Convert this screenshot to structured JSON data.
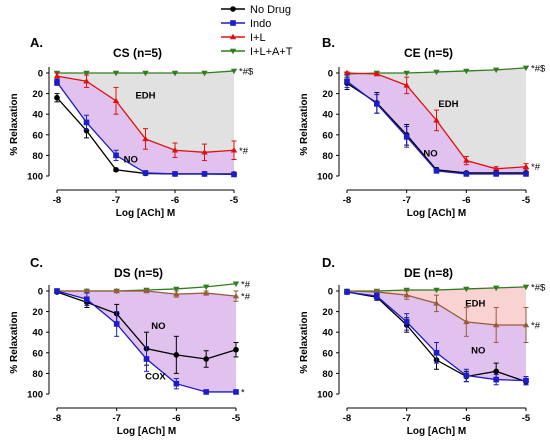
{
  "legend": {
    "items": [
      {
        "label": "No Drug",
        "color": "#000000",
        "marker": "circle"
      },
      {
        "label": "Indo",
        "color": "#1c1cc8",
        "marker": "square"
      },
      {
        "label": "I+L",
        "color": "#e01010",
        "marker": "triangle-up"
      },
      {
        "label": "I+L+A+T",
        "color": "#2e7d1e",
        "marker": "triangle-down"
      }
    ]
  },
  "colors": {
    "no_drug": "#000000",
    "indo": "#1c1cc8",
    "il": "#e01010",
    "ilat": "#2e7d1e",
    "il_brown": "#9a5a3c",
    "edh_fill": "#dcdcdc",
    "no_fill": "#dcb7ec",
    "edh_pink_fill": "#f8caca"
  },
  "chart_data": [
    {
      "panel": "A.",
      "title": "CS (n=5)",
      "type": "line",
      "xlabel": "Log [ACh] M",
      "ylabel": "% Relaxation",
      "xlim": [
        -8,
        -5
      ],
      "ylim": [
        0,
        100
      ],
      "y_inverted": true,
      "xticks": [
        "-8",
        "-7",
        "-6",
        "-5"
      ],
      "yticks": [
        "0",
        "20",
        "40",
        "60",
        "80",
        "100"
      ],
      "x": [
        -8,
        -7.5,
        -7,
        -6.5,
        -6,
        -5.5,
        -5
      ],
      "series": [
        {
          "name": "No Drug",
          "color": "#000000",
          "marker": "circle",
          "values": [
            24,
            56,
            94,
            97.5,
            98,
            98,
            98
          ],
          "err": [
            4,
            7,
            1.5,
            1,
            1,
            1,
            1
          ]
        },
        {
          "name": "Indo",
          "color": "#1c1cc8",
          "marker": "square",
          "values": [
            9,
            48,
            80,
            97,
            98,
            98,
            98.5
          ],
          "err": [
            3,
            7,
            5,
            1,
            1,
            1,
            1
          ]
        },
        {
          "name": "I+L",
          "color": "#e01010",
          "marker": "triangle-up",
          "values": [
            3,
            8,
            27,
            64,
            75,
            77,
            75
          ],
          "err": [
            3,
            6,
            13,
            10,
            7,
            8,
            9
          ]
        },
        {
          "name": "I+L+A+T",
          "color": "#2e7d1e",
          "marker": "triangle-down",
          "values": [
            0,
            0,
            0,
            0,
            0,
            0,
            -2
          ],
          "err": [
            0,
            0,
            0,
            0,
            0,
            0,
            0
          ]
        }
      ],
      "shading": [
        {
          "label": "EDH",
          "color": "#dcdcdc",
          "upper": "I+L+A+T",
          "lower": "I+L"
        },
        {
          "label": "NO",
          "color": "#dcb7ec",
          "upper": "I+L",
          "lower": "Indo"
        }
      ],
      "annotations": [
        {
          "text": "EDH",
          "x": -6.5,
          "y": 22
        },
        {
          "text": "NO",
          "x": -6.75,
          "y": 84
        }
      ],
      "end_labels": [
        {
          "text": "*#$",
          "series": "I+L+A+T"
        },
        {
          "text": "*#",
          "series": "I+L"
        }
      ]
    },
    {
      "panel": "B.",
      "title": "CE (n=5)",
      "type": "line",
      "xlabel": "Log [ACh] M",
      "ylabel": "% Relaxation",
      "xlim": [
        -8,
        -5
      ],
      "ylim": [
        0,
        100
      ],
      "y_inverted": true,
      "xticks": [
        "-8",
        "-7",
        "-6",
        "-5"
      ],
      "yticks": [
        "0",
        "20",
        "40",
        "60",
        "80",
        "100"
      ],
      "x": [
        -8,
        -7.5,
        -7,
        -6.5,
        -6,
        -5.5,
        -5
      ],
      "series": [
        {
          "name": "No Drug",
          "color": "#000000",
          "marker": "circle",
          "values": [
            10,
            29,
            60,
            94,
            97,
            97,
            97
          ],
          "err": [
            6,
            10,
            10,
            2,
            1,
            1,
            1
          ]
        },
        {
          "name": "Indo",
          "color": "#1c1cc8",
          "marker": "square",
          "values": [
            8,
            30,
            62,
            95,
            98,
            98,
            98
          ],
          "err": [
            6,
            9,
            10,
            2,
            1,
            1,
            1
          ]
        },
        {
          "name": "I+L",
          "color": "#e01010",
          "marker": "triangle-up",
          "values": [
            0,
            1,
            12,
            46,
            85,
            93,
            91
          ],
          "err": [
            1,
            1,
            8,
            10,
            4,
            2,
            3
          ]
        },
        {
          "name": "I+L+A+T",
          "color": "#2e7d1e",
          "marker": "triangle-down",
          "values": [
            1,
            0,
            0,
            -1,
            -2,
            -3,
            -5
          ],
          "err": [
            0,
            0,
            0,
            0,
            0,
            0,
            0
          ]
        }
      ],
      "shading": [
        {
          "label": "EDH",
          "color": "#dcdcdc",
          "upper": "I+L+A+T",
          "lower": "I+L"
        },
        {
          "label": "NO",
          "color": "#dcb7ec",
          "upper": "I+L",
          "lower": "Indo"
        }
      ],
      "annotations": [
        {
          "text": "EDH",
          "x": -6.3,
          "y": 30
        },
        {
          "text": "NO",
          "x": -6.6,
          "y": 78
        }
      ],
      "end_labels": [
        {
          "text": "*#$",
          "series": "I+L+A+T"
        },
        {
          "text": "*#",
          "series": "I+L"
        }
      ]
    },
    {
      "panel": "C.",
      "title": "DS (n=5)",
      "type": "line",
      "xlabel": "Log [ACh] M",
      "ylabel": "% Relaxation",
      "xlim": [
        -8,
        -5
      ],
      "ylim": [
        0,
        100
      ],
      "y_inverted": true,
      "xticks": [
        "-8",
        "-7",
        "-6",
        "-5"
      ],
      "yticks": [
        "0",
        "20",
        "40",
        "60",
        "80",
        "100"
      ],
      "x": [
        -8,
        -7.5,
        -7,
        -6.5,
        -6,
        -5.5,
        -5
      ],
      "series": [
        {
          "name": "No Drug",
          "color": "#000000",
          "marker": "circle",
          "values": [
            1,
            11,
            22,
            56,
            62,
            66,
            57
          ],
          "err": [
            1,
            5,
            9,
            16,
            18,
            8,
            7
          ]
        },
        {
          "name": "Indo",
          "color": "#1c1cc8",
          "marker": "square",
          "values": [
            0,
            8,
            32,
            66,
            90,
            98,
            98
          ],
          "err": [
            1,
            6,
            12,
            12,
            5,
            1,
            0
          ]
        },
        {
          "name": "I+L",
          "color": "#9a5a3c",
          "marker": "triangle-up",
          "values": [
            0,
            0,
            0,
            0,
            3,
            2,
            5
          ],
          "err": [
            0,
            0,
            0,
            0,
            3,
            2,
            5
          ]
        },
        {
          "name": "I+L+A+T",
          "color": "#2e7d1e",
          "marker": "triangle-down",
          "values": [
            0,
            0,
            0,
            -1,
            -2,
            -4,
            -7
          ],
          "err": [
            0,
            0,
            0,
            0,
            0,
            0,
            0
          ]
        }
      ],
      "shading": [
        {
          "label": "NO",
          "color": "#dcb7ec",
          "upper": "I+L",
          "lower": "Indo"
        }
      ],
      "annotations": [
        {
          "text": "NO",
          "x": -6.3,
          "y": 34
        },
        {
          "text": "COX",
          "x": -6.35,
          "y": 83
        }
      ],
      "end_labels": [
        {
          "text": "*#",
          "series": "I+L+A+T"
        },
        {
          "text": "*#",
          "series": "I+L"
        },
        {
          "text": "*",
          "series": "Indo"
        }
      ]
    },
    {
      "panel": "D.",
      "title": "DE (n=8)",
      "type": "line",
      "xlabel": "Log [ACh] M",
      "ylabel": "% Relaxation",
      "xlim": [
        -8,
        -5
      ],
      "ylim": [
        0,
        100
      ],
      "y_inverted": true,
      "xticks": [
        "-8",
        "-7",
        "-6",
        "-5"
      ],
      "yticks": [
        "0",
        "20",
        "40",
        "60",
        "80",
        "100"
      ],
      "x": [
        -8,
        -7.5,
        -7,
        -6.5,
        -6,
        -5.5,
        -5
      ],
      "series": [
        {
          "name": "No Drug",
          "color": "#000000",
          "marker": "circle",
          "values": [
            1,
            6,
            33,
            67,
            83,
            78,
            88
          ],
          "err": [
            1,
            3,
            7,
            9,
            5,
            8,
            3
          ]
        },
        {
          "name": "Indo",
          "color": "#1c1cc8",
          "marker": "square",
          "values": [
            1,
            5,
            30,
            60,
            82,
            86,
            87
          ],
          "err": [
            1,
            3,
            8,
            10,
            6,
            5,
            4
          ]
        },
        {
          "name": "I+L",
          "color": "#9a5a3c",
          "marker": "triangle-up",
          "values": [
            0,
            1,
            4,
            12,
            30,
            33,
            33
          ],
          "err": [
            1,
            2,
            4,
            8,
            14,
            17,
            17
          ]
        },
        {
          "name": "I+L+A+T",
          "color": "#2e7d1e",
          "marker": "triangle-down",
          "values": [
            0,
            0,
            -1,
            -1,
            -2,
            -3,
            -4
          ],
          "err": [
            0,
            0,
            0,
            0,
            0,
            0,
            0
          ]
        }
      ],
      "shading": [
        {
          "label": "EDH",
          "color": "#f8caca",
          "upper": "I+L+A+T",
          "lower": "I+L"
        },
        {
          "label": "NO",
          "color": "#dcb7ec",
          "upper": "I+L",
          "lower": "Indo"
        }
      ],
      "annotations": [
        {
          "text": "EDH",
          "x": -5.85,
          "y": 12
        },
        {
          "text": "NO",
          "x": -5.8,
          "y": 58
        }
      ],
      "end_labels": [
        {
          "text": "*#$",
          "series": "I+L+A+T"
        },
        {
          "text": "*#",
          "series": "I+L"
        }
      ]
    }
  ]
}
